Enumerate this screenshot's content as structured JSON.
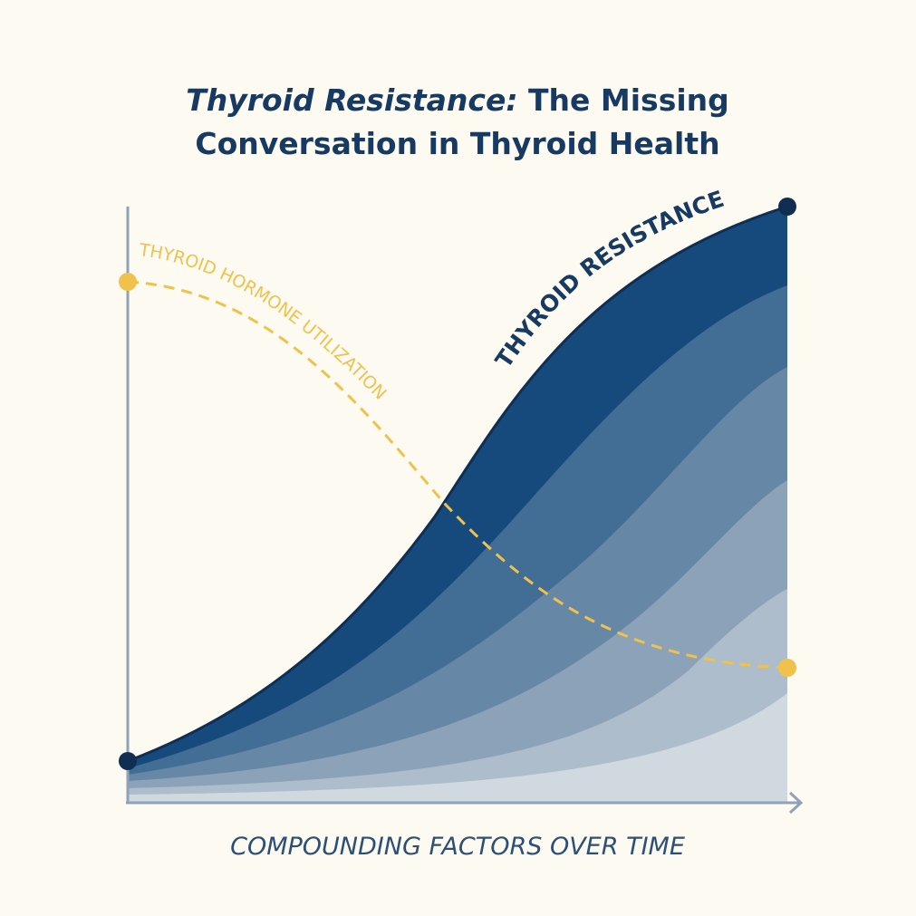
{
  "title": {
    "emphasis": "Thyroid Resistance:",
    "lines": [
      "The Missing",
      "Conversation in Thyroid Health"
    ]
  },
  "curve_labels": {
    "resistance": "THYROID RESISTANCE",
    "utilization": "THYROID HORMONE UTILIZATION"
  },
  "x_axis_label": "COMPOUNDING FACTORS OVER TIME"
}
